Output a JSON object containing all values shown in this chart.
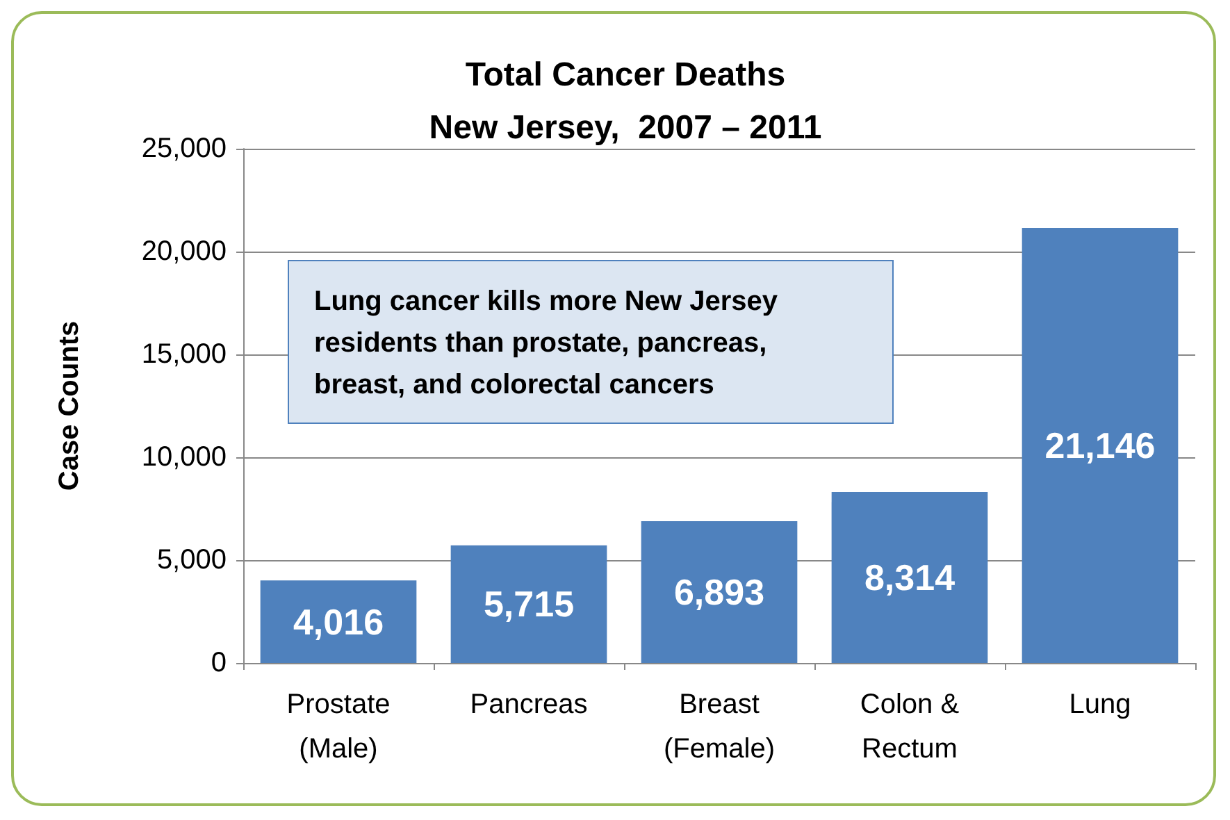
{
  "chart_data": {
    "type": "bar",
    "title": "Total Cancer Deaths\nNew Jersey,  2007 – 2011",
    "ylabel": "Case Counts",
    "categories": [
      "Prostate\n(Male)",
      "Pancreas",
      "Breast\n(Female)",
      "Colon &\nRectum",
      "Lung"
    ],
    "values": [
      4016,
      5715,
      6893,
      8314,
      21146
    ],
    "color": "#4f81bd",
    "value_labels": [
      "4,016",
      "5,715",
      "6,893",
      "8,314",
      "21,146"
    ],
    "ylim": [
      0,
      25000
    ],
    "yticks": [
      0,
      {
        "value": 5000,
        "label": "5,000"
      },
      {
        "value": 10000,
        "label": "10,000"
      },
      {
        "value": 15000,
        "label": "15,000"
      },
      {
        "value": 20000,
        "label": "20,000"
      },
      {
        "value": 25000,
        "label": "25,000"
      }
    ],
    "grid": "y",
    "annotations": [
      "Lung cancer kills more New Jersey residents than prostate, pancreas, breast, and colorectal cancers"
    ]
  }
}
